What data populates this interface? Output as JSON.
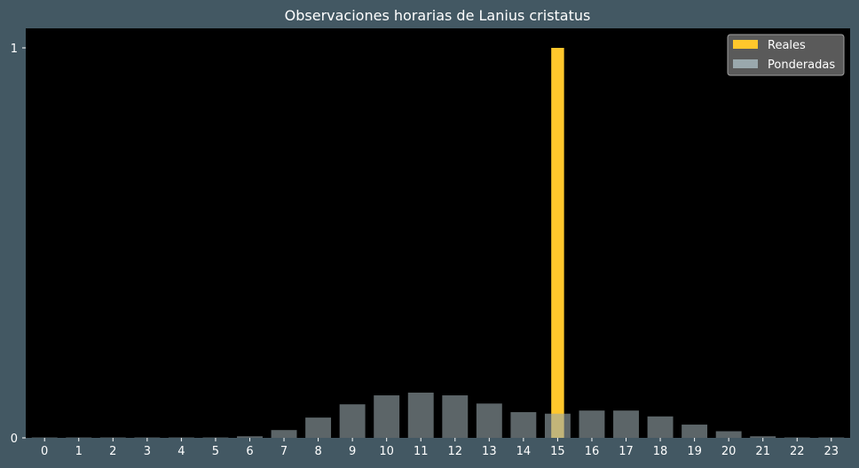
{
  "chart_data": {
    "type": "bar",
    "title": "Observaciones horarias de Lanius cristatus",
    "xlabel": "",
    "ylabel": "",
    "categories": [
      "0",
      "1",
      "2",
      "3",
      "4",
      "5",
      "6",
      "7",
      "8",
      "9",
      "10",
      "11",
      "12",
      "13",
      "14",
      "15",
      "16",
      "17",
      "18",
      "19",
      "20",
      "21",
      "22",
      "23"
    ],
    "yticks": [
      "0",
      "1"
    ],
    "ylim": [
      0,
      1.05
    ],
    "grid": false,
    "legend_position": "top-right",
    "series": [
      {
        "name": "Reales",
        "color": "#ffc72c",
        "values": [
          0,
          0,
          0,
          0,
          0,
          0,
          0,
          0,
          0,
          0,
          0,
          0,
          0,
          0,
          0,
          1,
          0,
          0,
          0,
          0,
          0,
          0,
          0,
          0
        ]
      },
      {
        "name": "Ponderadas",
        "color": "#9aa8ad",
        "values": [
          0.001,
          0.001,
          0.001,
          0.001,
          0.001,
          0.001,
          0.004,
          0.02,
          0.052,
          0.086,
          0.109,
          0.116,
          0.109,
          0.088,
          0.066,
          0.062,
          0.07,
          0.07,
          0.055,
          0.034,
          0.017,
          0.004,
          0.001,
          0.001
        ]
      }
    ],
    "colors": {
      "page_background": "#435863",
      "plot_background": "#000000",
      "legend_background": "#5a5a5a",
      "text": "#ffffff"
    }
  }
}
